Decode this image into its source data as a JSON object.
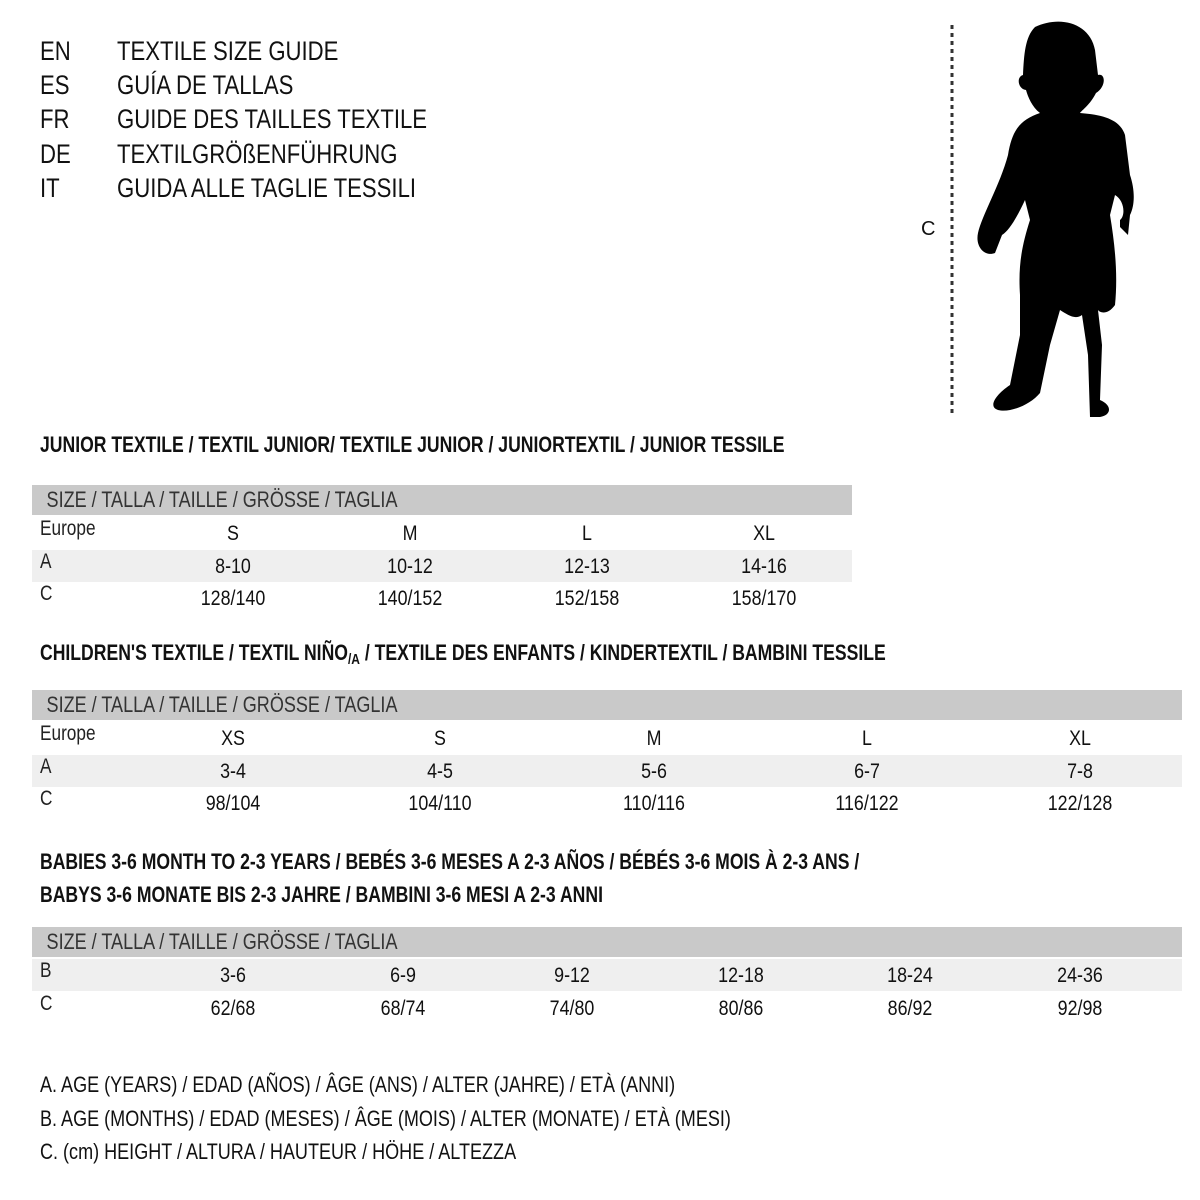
{
  "languages": [
    {
      "code": "EN",
      "text": "TEXTILE SIZE GUIDE"
    },
    {
      "code": "ES",
      "text": "GUÍA DE TALLAS"
    },
    {
      "code": "FR",
      "text": "GUIDE DES TAILLES TEXTILE"
    },
    {
      "code": "DE",
      "text": "TEXTILGRÖßENFÜHRUNG"
    },
    {
      "code": "IT",
      "text": "GUIDA ALLE TAGLIE TESSILI"
    }
  ],
  "figure": {
    "measure_label": "C",
    "icon": "child-silhouette-icon"
  },
  "colors": {
    "header_bar": "#c9c9c9",
    "shaded_row": "#efefef"
  },
  "sections": [
    {
      "title": "JUNIOR TEXTILE / TEXTIL JUNIOR/ TEXTILE JUNIOR / JUNIORTEXTIL / JUNIOR TESSILE",
      "header": "SIZE / TALLA / TAILLE / GRÖSSE / TAGLIA",
      "rows": [
        {
          "label": "Europe",
          "values": [
            "S",
            "M",
            "L",
            "XL"
          ]
        },
        {
          "label": "A",
          "values": [
            "8-10",
            "10-12",
            "12-13",
            "14-16"
          ]
        },
        {
          "label": "C",
          "values": [
            "128/140",
            "140/152",
            "152/158",
            "158/170"
          ]
        }
      ]
    },
    {
      "title": "CHILDREN'S TEXTILE / TEXTIL NIÑO",
      "title_sub": "/A",
      "title_rest": " / TEXTILE DES ENFANTS / KINDERTEXTIL / BAMBINI TESSILE",
      "header": "SIZE / TALLA / TAILLE / GRÖSSE / TAGLIA",
      "rows": [
        {
          "label": "Europe",
          "values": [
            "XS",
            "S",
            "M",
            "L",
            "XL"
          ]
        },
        {
          "label": "A",
          "values": [
            "3-4",
            "4-5",
            "5-6",
            "6-7",
            "7-8"
          ]
        },
        {
          "label": "C",
          "values": [
            "98/104",
            "104/110",
            "110/116",
            "116/122",
            "122/128"
          ]
        }
      ]
    },
    {
      "title": "BABIES 3-6 MONTH TO 2-3 YEARS / BEBÉS 3-6 MESES A 2-3 AÑOS / BÉBÉS 3-6 MOIS À 2-3 ANS /",
      "title2": "BABYS 3-6 MONATE BIS 2-3 JAHRE / BAMBINI 3-6 MESI A 2-3 ANNI",
      "header": "SIZE / TALLA / TAILLE / GRÖSSE / TAGLIA",
      "rows": [
        {
          "label": "B",
          "values": [
            "3-6",
            "6-9",
            "9-12",
            "12-18",
            "18-24",
            "24-36"
          ]
        },
        {
          "label": "C",
          "values": [
            "62/68",
            "68/74",
            "74/80",
            "80/86",
            "86/92",
            "92/98"
          ]
        }
      ]
    }
  ],
  "legend": [
    "A. AGE (YEARS) / EDAD (AÑOS) / ÂGE (ANS) / ALTER (JAHRE) / ETÀ (ANNI)",
    "B. AGE (MONTHS) / EDAD (MESES) / ÂGE (MOIS) / ALTER (MONATE) / ETÀ (MESI)",
    "C. (cm) HEIGHT / ALTURA / HAUTEUR / HÖHE / ALTEZZA"
  ]
}
